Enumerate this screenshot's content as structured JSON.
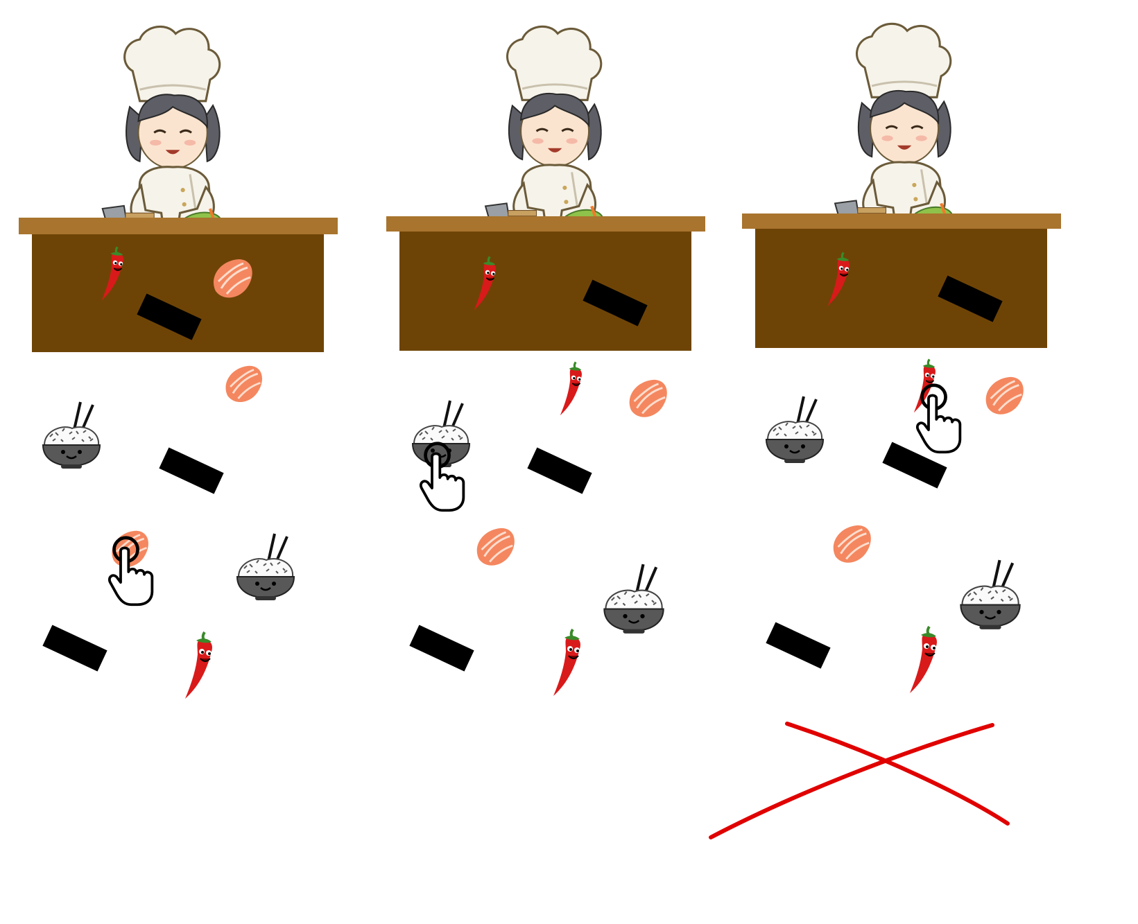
{
  "scene": {
    "panels": [
      {
        "id": "step-1",
        "counter_items": [
          "chili",
          "salmon",
          "nori"
        ],
        "tapped_item": "salmon",
        "result": "none"
      },
      {
        "id": "step-2",
        "counter_items": [
          "chili",
          "nori"
        ],
        "tapped_item": "rice-bowl",
        "result": "none"
      },
      {
        "id": "step-3",
        "counter_items": [
          "chili",
          "nori"
        ],
        "tapped_item": "chili",
        "result": "wrong"
      }
    ],
    "ingredient_types": [
      "salmon",
      "nori",
      "chili",
      "rice-bowl"
    ]
  },
  "colors": {
    "counter_top": "#a8742e",
    "counter_body": "#6e4406",
    "salmon": "#f4875f",
    "nori": "#000000",
    "chili": "#d91a1a",
    "bowl": "#555555",
    "wrong_mark": "#e00000"
  },
  "icons": {
    "chef": "chef-icon",
    "pointer": "hand-pointer-icon",
    "wrong": "red-x-icon"
  }
}
